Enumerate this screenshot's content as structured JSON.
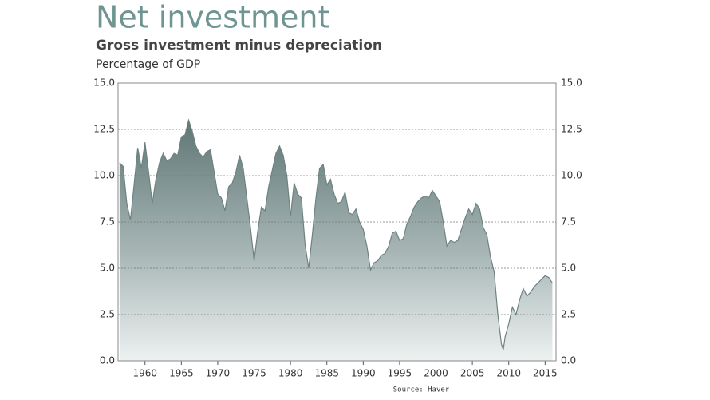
{
  "chart_data": {
    "type": "area",
    "title": "Net investment",
    "subtitle": "Gross investment minus depreciation",
    "y_label": "Percentage of GDP",
    "source": "Source:  Haver",
    "color": "#6e8381",
    "grid": true,
    "xlim": [
      1956.3,
      2016.5
    ],
    "xticks": [
      1960,
      1965,
      1970,
      1975,
      1980,
      1985,
      1990,
      1995,
      2000,
      2005,
      2010,
      2015
    ],
    "ylim": [
      0,
      15
    ],
    "yticks": [
      {
        "value": 0,
        "label": "0.0"
      },
      {
        "value": 2.5,
        "label": "2.5"
      },
      {
        "value": 5,
        "label": "5.0"
      },
      {
        "value": 7.5,
        "label": "7.5"
      },
      {
        "value": 10,
        "label": "10.0"
      },
      {
        "value": 12.5,
        "label": "12.5"
      },
      {
        "value": 15,
        "label": "15.0"
      }
    ],
    "x": [
      1956.5,
      1957,
      1957.5,
      1958,
      1958.5,
      1959,
      1959.5,
      1960,
      1960.5,
      1961,
      1961.5,
      1962,
      1962.5,
      1963,
      1963.5,
      1964,
      1964.5,
      1965,
      1965.5,
      1966,
      1966.5,
      1967,
      1967.5,
      1968,
      1968.5,
      1969,
      1969.5,
      1970,
      1970.5,
      1971,
      1971.5,
      1972,
      1972.5,
      1973,
      1973.5,
      1974,
      1974.5,
      1975,
      1975.5,
      1976,
      1976.5,
      1977,
      1977.5,
      1978,
      1978.5,
      1979,
      1979.5,
      1980,
      1980.5,
      1981,
      1981.5,
      1982,
      1982.5,
      1983,
      1983.5,
      1984,
      1984.5,
      1985,
      1985.5,
      1986,
      1986.5,
      1987,
      1987.5,
      1988,
      1988.5,
      1989,
      1989.5,
      1990,
      1990.5,
      1991,
      1991.5,
      1992,
      1992.5,
      1993,
      1993.5,
      1994,
      1994.5,
      1995,
      1995.5,
      1996,
      1996.5,
      1997,
      1997.5,
      1998,
      1998.5,
      1999,
      1999.5,
      2000,
      2000.5,
      2001,
      2001.5,
      2002,
      2002.5,
      2003,
      2003.5,
      2004,
      2004.5,
      2005,
      2005.5,
      2006,
      2006.5,
      2007,
      2007.5,
      2008,
      2008.5,
      2009,
      2009.25,
      2009.5,
      2010,
      2010.5,
      2011,
      2011.5,
      2012,
      2012.5,
      2013,
      2013.5,
      2014,
      2014.5,
      2015,
      2015.5,
      2016
    ],
    "values": [
      10.7,
      10.5,
      8.5,
      7.6,
      9.5,
      11.5,
      10.4,
      11.8,
      10.2,
      8.5,
      9.8,
      10.7,
      11.2,
      10.8,
      10.9,
      11.2,
      11.1,
      12.1,
      12.2,
      13.0,
      12.4,
      11.6,
      11.2,
      11.0,
      11.3,
      11.4,
      10.2,
      9.0,
      8.8,
      8.1,
      9.4,
      9.6,
      10.2,
      11.1,
      10.4,
      8.8,
      7.2,
      5.4,
      7.0,
      8.3,
      8.1,
      9.4,
      10.3,
      11.2,
      11.6,
      11.1,
      10.0,
      7.8,
      9.6,
      9.0,
      8.8,
      6.3,
      5.0,
      6.8,
      8.8,
      10.4,
      10.6,
      9.5,
      9.8,
      9.0,
      8.5,
      8.6,
      9.1,
      8.0,
      7.9,
      8.2,
      7.5,
      7.1,
      6.2,
      4.9,
      5.3,
      5.4,
      5.7,
      5.8,
      6.2,
      6.9,
      7.0,
      6.5,
      6.6,
      7.4,
      7.8,
      8.3,
      8.6,
      8.8,
      8.9,
      8.8,
      9.2,
      8.9,
      8.6,
      7.5,
      6.2,
      6.5,
      6.4,
      6.5,
      7.1,
      7.7,
      8.2,
      7.9,
      8.5,
      8.2,
      7.2,
      6.8,
      5.6,
      4.8,
      2.5,
      0.9,
      0.6,
      1.3,
      2.0,
      2.9,
      2.5,
      3.3,
      3.9,
      3.5,
      3.7,
      4.0,
      4.2,
      4.4,
      4.6,
      4.5,
      4.2
    ]
  }
}
